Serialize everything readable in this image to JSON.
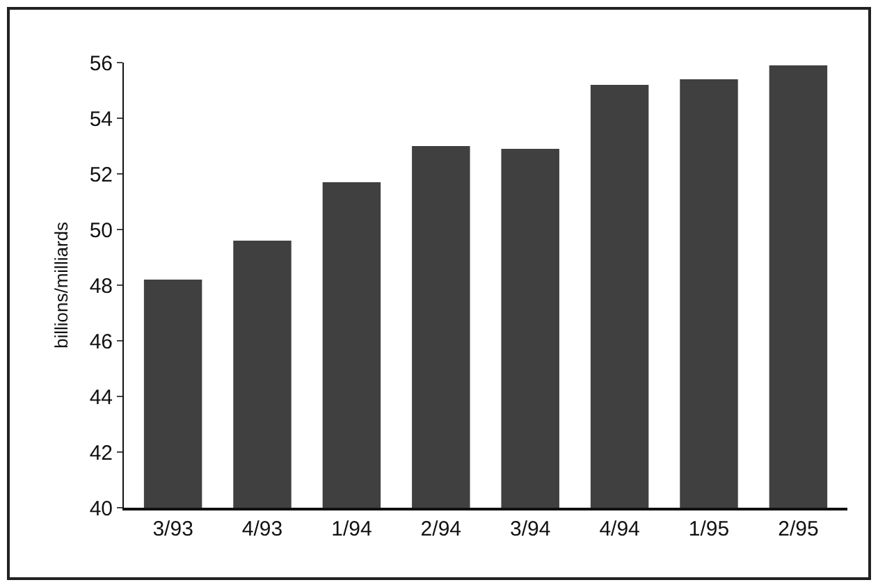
{
  "chart_data": {
    "type": "bar",
    "ylabel": "billions/milliards",
    "categories": [
      "3/93",
      "4/93",
      "1/94",
      "2/94",
      "3/94",
      "4/94",
      "1/95",
      "2/95"
    ],
    "values": [
      48.2,
      49.6,
      51.7,
      53.0,
      52.9,
      55.2,
      55.4,
      55.9
    ],
    "color": "#404040",
    "ylim": [
      40,
      56
    ],
    "yticks": [
      40,
      42,
      44,
      46,
      48,
      50,
      52,
      54,
      56
    ],
    "grid": false
  }
}
